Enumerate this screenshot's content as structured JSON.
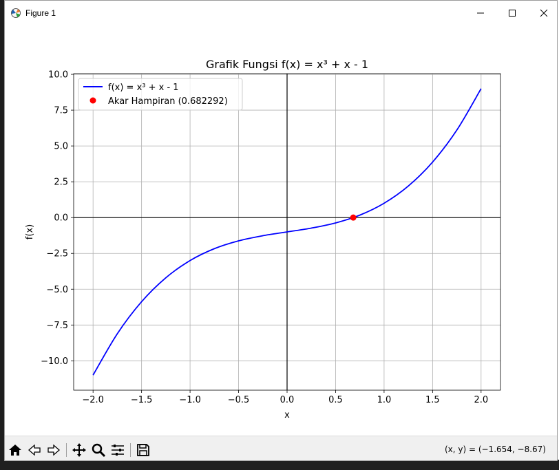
{
  "window": {
    "title": "Figure 1"
  },
  "toolbar": {
    "buttons": [
      "home-icon",
      "back-icon",
      "forward-icon",
      "pan-icon",
      "zoom-icon",
      "configure-subplots-icon",
      "save-icon"
    ],
    "coords": "(x, y) = (−1.654, −8.67)"
  },
  "colors": {
    "curve": "#0000ff",
    "root": "#ff0000",
    "grid": "#b0b0b0",
    "axes_lines": "#000000"
  },
  "chart_data": {
    "type": "line",
    "title": "Grafik Fungsi f(x) = x³ + x - 1",
    "xlabel": "x",
    "ylabel": "f(x)",
    "xlim": [
      -2.2,
      2.2
    ],
    "ylim": [
      -12.05,
      10.05
    ],
    "xticks": [
      -2.0,
      -1.5,
      -1.0,
      -0.5,
      0.0,
      0.5,
      1.0,
      1.5,
      2.0
    ],
    "xtick_labels": [
      "−2.0",
      "−1.5",
      "−1.0",
      "−0.5",
      "0.0",
      "0.5",
      "1.0",
      "1.5",
      "2.0"
    ],
    "yticks": [
      10.0,
      7.5,
      5.0,
      2.5,
      0.0,
      -2.5,
      -5.0,
      -7.5,
      -10.0
    ],
    "ytick_labels": [
      "10.0",
      "7.5",
      "5.0",
      "2.5",
      "0.0",
      "−2.5",
      "−5.0",
      "−7.5",
      "−10.0"
    ],
    "grid": true,
    "legend_position": "top-left",
    "series": [
      {
        "name": "f(x) = x³ + x - 1",
        "type": "line",
        "x": [
          -2.0,
          -1.75,
          -1.5,
          -1.25,
          -1.0,
          -0.75,
          -0.5,
          -0.25,
          0.0,
          0.25,
          0.5,
          0.75,
          1.0,
          1.25,
          1.5,
          1.75,
          2.0
        ],
        "y": [
          -11.0,
          -8.11,
          -5.875,
          -4.203,
          -3.0,
          -2.172,
          -1.625,
          -1.266,
          -1.0,
          -0.734,
          -0.375,
          0.172,
          1.0,
          2.203,
          3.875,
          6.109,
          9.0
        ]
      },
      {
        "name": "Akar Hampiran (0.682292)",
        "type": "scatter",
        "x": [
          0.682292
        ],
        "y": [
          0.0
        ]
      }
    ]
  }
}
